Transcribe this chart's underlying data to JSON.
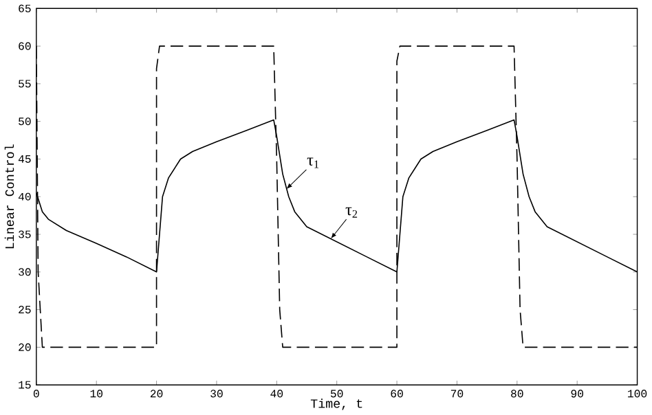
{
  "chart_data": {
    "type": "line",
    "xlabel": "Time, t",
    "ylabel": "Linear Control",
    "xlim": [
      0,
      100
    ],
    "ylim": [
      15,
      65
    ],
    "xticks": [
      0,
      10,
      20,
      30,
      40,
      50,
      60,
      70,
      80,
      90,
      100
    ],
    "yticks": [
      15,
      20,
      25,
      30,
      35,
      40,
      45,
      50,
      55,
      60,
      65
    ],
    "grid": false,
    "marker": "none",
    "series": [
      {
        "color": "#000000",
        "line_style": "dashed",
        "x": [
          0,
          0.3,
          1,
          20,
          20,
          20.5,
          39.5,
          40,
          40.5,
          41,
          60,
          60,
          60.5,
          79.5,
          80,
          80.5,
          81,
          100
        ],
        "values": [
          60,
          30,
          20,
          20,
          57,
          60,
          60,
          45,
          25,
          20,
          20,
          58,
          60,
          60,
          45,
          25,
          20,
          20
        ]
      },
      {
        "color": "#000000",
        "line_style": "solid",
        "x": [
          0,
          1,
          2,
          5,
          10,
          15,
          20,
          20.3,
          21,
          22,
          24,
          26,
          30,
          35,
          39.5,
          40,
          41,
          42,
          43,
          45,
          50,
          55,
          60,
          60.3,
          61,
          62,
          64,
          66,
          70,
          75,
          79.5,
          80,
          81,
          82,
          83,
          85,
          90,
          95,
          100
        ],
        "values": [
          40.5,
          38,
          37,
          35.5,
          33.8,
          32,
          30,
          33,
          40,
          42.5,
          45,
          46,
          47.3,
          48.8,
          50.2,
          48,
          43,
          40,
          38,
          36,
          34,
          32,
          30,
          33,
          40,
          42.5,
          45,
          46,
          47.3,
          48.8,
          50.2,
          48,
          43,
          40,
          38,
          36,
          34,
          32,
          30
        ]
      }
    ],
    "annotations": [
      {
        "text": "τ$_{1}$",
        "x": 41.6,
        "y": 41
      },
      {
        "text": "τ$_{2}$",
        "x": 49,
        "y": 34.4
      }
    ]
  }
}
